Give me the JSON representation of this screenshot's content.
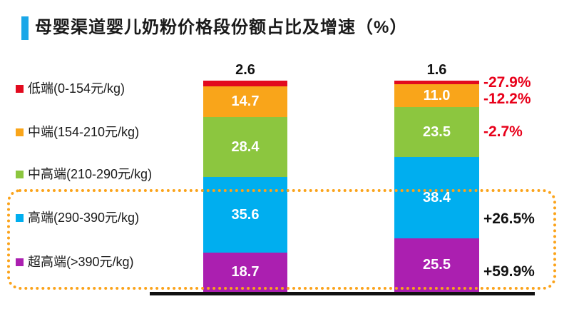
{
  "title": {
    "text": "母婴渠道婴儿奶粉价格段份额占比及增速（%）"
  },
  "colors": {
    "title_accent": "#1aa7e8",
    "negative_growth_text": "#e8001a",
    "positive_growth_text": "#111111",
    "highlight_box_border": "#fba31a",
    "axis_line": "#111111"
  },
  "chart_data": {
    "type": "bar",
    "subtype": "stacked-percent",
    "title": "母婴渠道婴儿奶粉价格段份额占比及增速（%）",
    "unit": "%",
    "categories": [
      "",
      ""
    ],
    "series": [
      {
        "name": "低端(0-154元/kg)",
        "slug": "low-end",
        "color": "#e20a1e",
        "values": [
          2.6,
          1.6
        ],
        "growth": "-27.9%"
      },
      {
        "name": "中端(154-210元/kg)",
        "slug": "mid-range",
        "color": "#f9a51a",
        "values": [
          14.7,
          11.0
        ],
        "growth": "-12.2%"
      },
      {
        "name": "中高端(210-290元/kg)",
        "slug": "mid-high-end",
        "color": "#8cc63f",
        "values": [
          28.4,
          23.5
        ],
        "growth": "-2.7%"
      },
      {
        "name": "高端(290-390元/kg)",
        "slug": "high-end",
        "color": "#00aeef",
        "values": [
          35.6,
          38.4
        ],
        "growth": "+26.5%"
      },
      {
        "name": "超高端(>390元/kg)",
        "slug": "super-premium",
        "color": "#ab1fb0",
        "values": [
          18.7,
          25.5
        ],
        "growth": "+59.9%"
      }
    ],
    "ylim": [
      0,
      100
    ],
    "legend_position": "left",
    "value_labels": "inside segments, first series labeled above bar top",
    "highlight": {
      "series": [
        "高端(290-390元/kg)",
        "超高端(>390元/kg)"
      ],
      "style": "orange dotted rounded box around premium segments and their growth labels"
    }
  }
}
